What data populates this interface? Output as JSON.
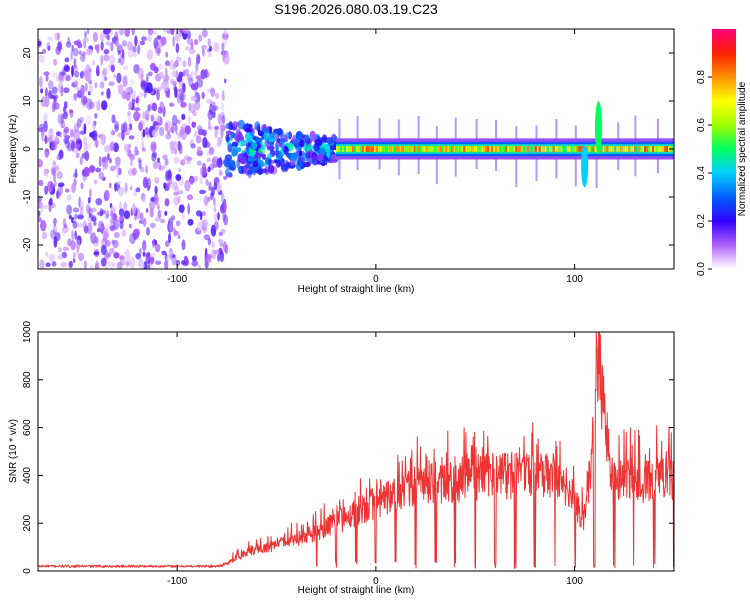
{
  "figure_title": "S196.2026.080.03.19.C23",
  "chart_data": [
    {
      "type": "heatmap",
      "title": "S196.2026.080.03.19.C23",
      "xlabel": "Height of straight line (km)",
      "ylabel": "Frequency (Hz)",
      "xlim": [
        -170,
        150
      ],
      "ylim": [
        -25,
        25
      ],
      "x_ticks": [
        -100,
        0,
        100
      ],
      "y_ticks": [
        -20,
        -10,
        0,
        10,
        20
      ],
      "colorbar": {
        "label": "Normalized spectral amplitude",
        "range": [
          0,
          1
        ],
        "ticks": [
          0.0,
          0.2,
          0.4,
          0.6,
          0.8
        ],
        "colormap": [
          "#ffffff",
          "#b060ff",
          "#3000ff",
          "#0060ff",
          "#00d0ff",
          "#00ff60",
          "#a0ff00",
          "#ffff00",
          "#ff9000",
          "#ff2000",
          "#ff0080"
        ]
      },
      "regions": [
        {
          "x_range": [
            -170,
            -75
          ],
          "description": "broadband noise",
          "amplitude": 0.1
        },
        {
          "x_range": [
            -75,
            -20
          ],
          "description": "onset",
          "center_freq": 0,
          "amplitude": 0.3
        },
        {
          "x_range": [
            -20,
            150
          ],
          "description": "strong line near 0 Hz",
          "center_freq": 0,
          "amplitude": 0.8
        }
      ],
      "features": [
        {
          "x": 112,
          "freq_range": [
            -1,
            10
          ],
          "amplitude": 0.5
        },
        {
          "x": 105,
          "freq_range": [
            -8,
            1
          ],
          "amplitude": 0.4
        }
      ]
    },
    {
      "type": "line",
      "xlabel": "Height of straight line (km)",
      "ylabel": "SNR (10 * v/v)",
      "xlim": [
        -170,
        150
      ],
      "ylim": [
        0,
        1000
      ],
      "x_ticks": [
        -100,
        0,
        100
      ],
      "y_ticks": [
        0,
        200,
        400,
        600,
        800,
        1000
      ],
      "color": "#ee3333",
      "series": [
        {
          "name": "SNR",
          "x": [
            -170,
            -150,
            -130,
            -110,
            -90,
            -80,
            -75,
            -70,
            -60,
            -50,
            -40,
            -30,
            -20,
            -10,
            0,
            10,
            20,
            30,
            40,
            50,
            60,
            70,
            80,
            90,
            95,
            100,
            105,
            110,
            112,
            115,
            120,
            130,
            140,
            150
          ],
          "values": [
            20,
            20,
            20,
            20,
            20,
            20,
            30,
            60,
            90,
            110,
            130,
            160,
            200,
            250,
            290,
            320,
            350,
            370,
            380,
            390,
            400,
            400,
            390,
            400,
            330,
            300,
            200,
            600,
            1000,
            600,
            380,
            380,
            380,
            380
          ]
        }
      ]
    }
  ]
}
